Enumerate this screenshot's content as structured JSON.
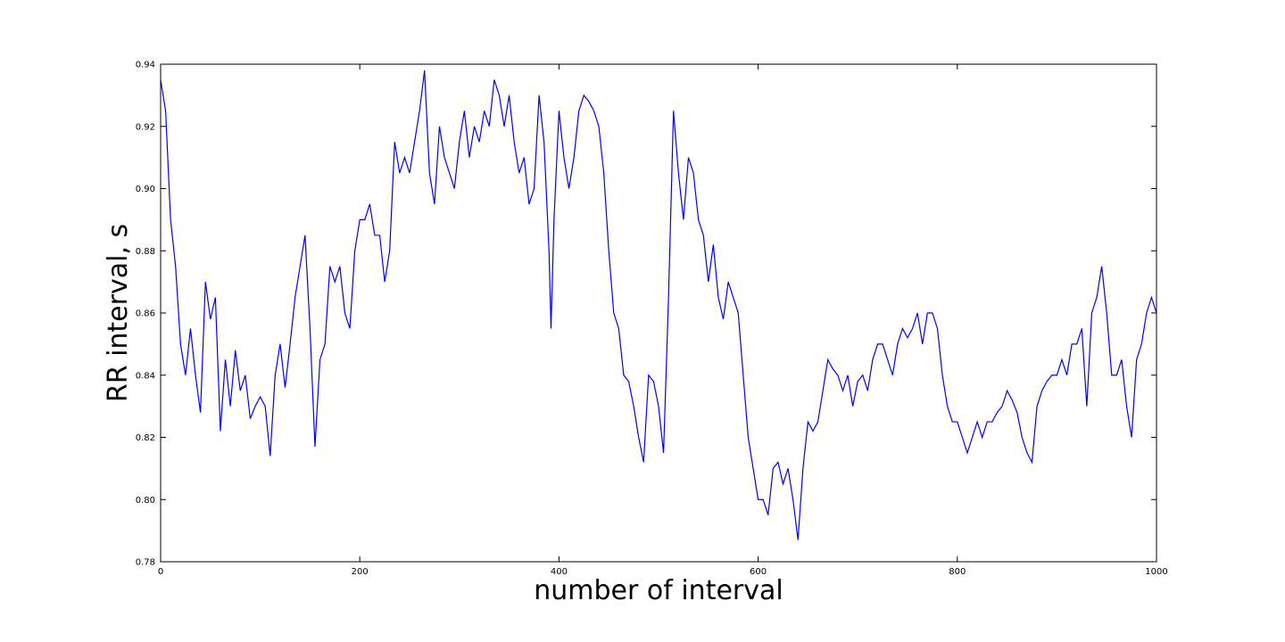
{
  "chart_data": {
    "type": "line",
    "xlabel": "number of interval",
    "ylabel": "RR interval, s",
    "x": [
      0,
      5,
      10,
      15,
      20,
      25,
      30,
      35,
      40,
      45,
      50,
      55,
      60,
      65,
      70,
      75,
      80,
      85,
      90,
      95,
      100,
      105,
      110,
      115,
      120,
      125,
      130,
      135,
      140,
      145,
      150,
      155,
      160,
      165,
      170,
      175,
      180,
      185,
      190,
      195,
      200,
      205,
      210,
      215,
      220,
      225,
      230,
      235,
      240,
      245,
      250,
      255,
      260,
      265,
      270,
      275,
      280,
      285,
      290,
      295,
      300,
      305,
      310,
      315,
      320,
      325,
      330,
      335,
      340,
      345,
      350,
      355,
      360,
      365,
      370,
      375,
      380,
      385,
      390,
      392,
      395,
      400,
      405,
      410,
      415,
      420,
      425,
      430,
      435,
      440,
      445,
      450,
      455,
      460,
      465,
      470,
      475,
      480,
      485,
      490,
      495,
      500,
      505,
      510,
      515,
      520,
      525,
      530,
      535,
      540,
      545,
      550,
      555,
      560,
      565,
      570,
      575,
      580,
      585,
      590,
      595,
      600,
      605,
      610,
      615,
      620,
      625,
      630,
      635,
      640,
      645,
      650,
      655,
      660,
      665,
      670,
      675,
      680,
      685,
      690,
      695,
      700,
      705,
      710,
      715,
      720,
      725,
      730,
      735,
      740,
      745,
      750,
      755,
      760,
      765,
      770,
      775,
      780,
      785,
      790,
      795,
      800,
      805,
      810,
      815,
      820,
      825,
      830,
      835,
      840,
      845,
      850,
      855,
      860,
      865,
      870,
      875,
      880,
      885,
      890,
      895,
      900,
      905,
      910,
      915,
      920,
      925,
      930,
      935,
      940,
      945,
      950,
      955,
      960,
      965,
      970,
      975,
      980,
      985,
      990,
      995,
      1000
    ],
    "series": [
      {
        "name": "RR interval",
        "color": "#0000ff",
        "values": [
          0.935,
          0.925,
          0.89,
          0.875,
          0.85,
          0.84,
          0.855,
          0.84,
          0.828,
          0.87,
          0.858,
          0.865,
          0.822,
          0.845,
          0.83,
          0.848,
          0.835,
          0.84,
          0.826,
          0.83,
          0.833,
          0.83,
          0.814,
          0.84,
          0.85,
          0.836,
          0.85,
          0.865,
          0.875,
          0.885,
          0.855,
          0.817,
          0.845,
          0.85,
          0.875,
          0.87,
          0.875,
          0.86,
          0.855,
          0.88,
          0.89,
          0.89,
          0.895,
          0.885,
          0.885,
          0.87,
          0.88,
          0.915,
          0.905,
          0.91,
          0.905,
          0.915,
          0.925,
          0.938,
          0.905,
          0.895,
          0.92,
          0.91,
          0.905,
          0.9,
          0.915,
          0.925,
          0.91,
          0.92,
          0.915,
          0.925,
          0.92,
          0.935,
          0.93,
          0.92,
          0.93,
          0.915,
          0.905,
          0.91,
          0.895,
          0.9,
          0.93,
          0.915,
          0.88,
          0.855,
          0.89,
          0.925,
          0.91,
          0.9,
          0.91,
          0.925,
          0.93,
          0.928,
          0.925,
          0.92,
          0.905,
          0.88,
          0.86,
          0.855,
          0.84,
          0.838,
          0.83,
          0.82,
          0.812,
          0.84,
          0.838,
          0.83,
          0.815,
          0.865,
          0.925,
          0.905,
          0.89,
          0.91,
          0.905,
          0.89,
          0.885,
          0.87,
          0.882,
          0.865,
          0.858,
          0.87,
          0.865,
          0.86,
          0.84,
          0.82,
          0.81,
          0.8,
          0.8,
          0.795,
          0.81,
          0.812,
          0.805,
          0.81,
          0.8,
          0.787,
          0.81,
          0.825,
          0.822,
          0.825,
          0.835,
          0.845,
          0.842,
          0.84,
          0.835,
          0.84,
          0.83,
          0.838,
          0.84,
          0.835,
          0.845,
          0.85,
          0.85,
          0.845,
          0.84,
          0.85,
          0.855,
          0.852,
          0.855,
          0.86,
          0.85,
          0.86,
          0.86,
          0.855,
          0.84,
          0.83,
          0.825,
          0.825,
          0.82,
          0.815,
          0.82,
          0.825,
          0.82,
          0.825,
          0.825,
          0.828,
          0.83,
          0.835,
          0.832,
          0.828,
          0.82,
          0.815,
          0.812,
          0.83,
          0.835,
          0.838,
          0.84,
          0.84,
          0.845,
          0.84,
          0.85,
          0.85,
          0.855,
          0.83,
          0.86,
          0.865,
          0.875,
          0.86,
          0.84,
          0.84,
          0.845,
          0.83,
          0.82,
          0.845,
          0.85,
          0.86,
          0.865,
          0.86
        ]
      }
    ],
    "xlim": [
      0,
      1000
    ],
    "xticks": [
      0,
      200,
      400,
      600,
      800,
      1000
    ],
    "ylim": [
      0.78,
      0.94
    ],
    "yticks": [
      0.78,
      {
        "value": 0.8,
        "label": "0.80"
      },
      0.82,
      0.84,
      0.86,
      0.88,
      {
        "value": 0.9,
        "label": "0.90"
      },
      0.92,
      0.94
    ]
  }
}
